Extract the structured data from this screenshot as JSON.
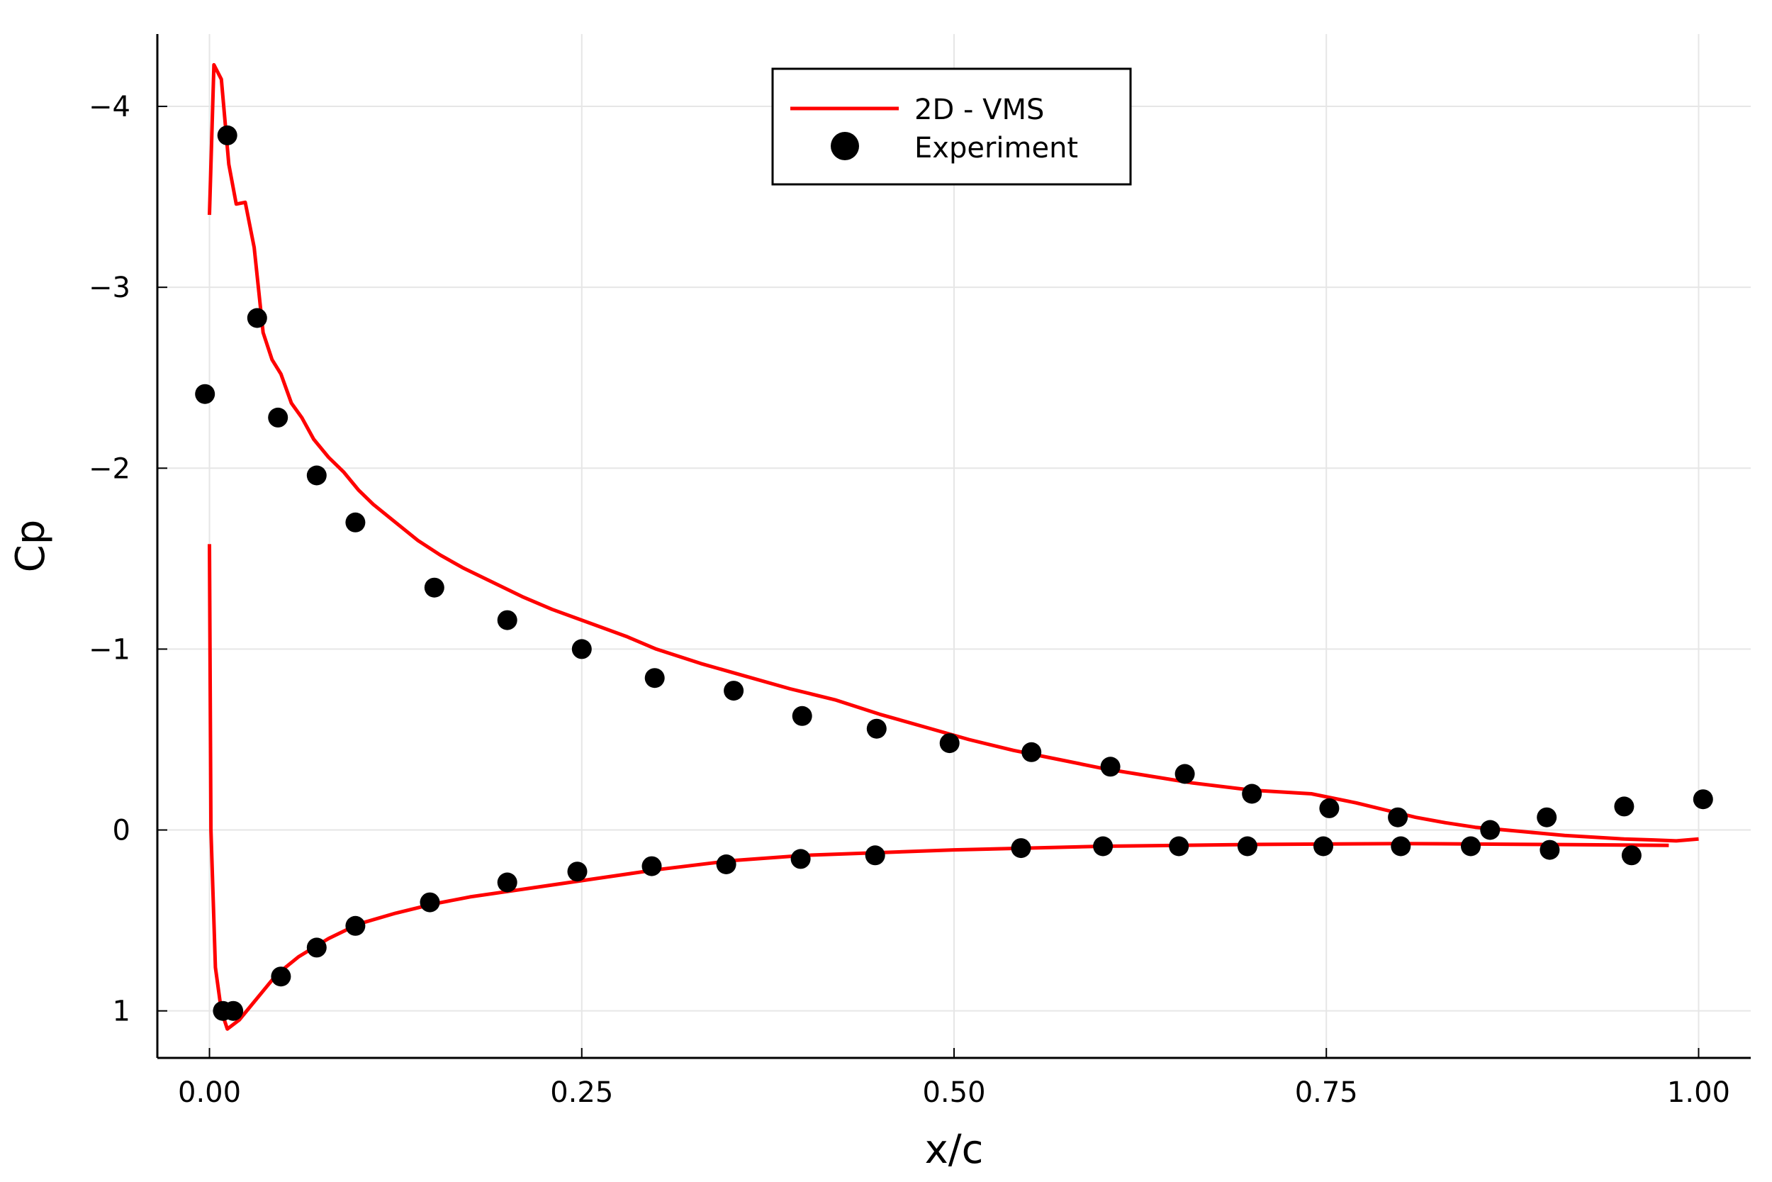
{
  "chart_data": {
    "type": "scatter",
    "title": "",
    "xlabel": "x/c",
    "ylabel": "Cp",
    "xlim": [
      -0.035,
      1.035
    ],
    "ylim": [
      1.26,
      -4.4
    ],
    "y_inverted": true,
    "grid": true,
    "legend_position": "top-center",
    "x_ticks": [
      {
        "value": 0.0,
        "label": "0.00"
      },
      {
        "value": 0.25,
        "label": "0.25"
      },
      {
        "value": 0.5,
        "label": "0.50"
      },
      {
        "value": 0.75,
        "label": "0.75"
      },
      {
        "value": 1.0,
        "label": "1.00"
      }
    ],
    "y_ticks": [
      {
        "value": -4,
        "label": "−4"
      },
      {
        "value": -3,
        "label": "−3"
      },
      {
        "value": -2,
        "label": "−2"
      },
      {
        "value": -1,
        "label": "−1"
      },
      {
        "value": 0,
        "label": "0"
      },
      {
        "value": 1,
        "label": "1"
      }
    ],
    "series": [
      {
        "name": "2D - VMS",
        "kind": "line",
        "color": "#ff0000",
        "segments": [
          [
            [
              0.0,
              -3.4
            ],
            [
              0.003,
              -4.23
            ],
            [
              0.008,
              -4.15
            ],
            [
              0.013,
              -3.68
            ],
            [
              0.018,
              -3.46
            ],
            [
              0.024,
              -3.47
            ],
            [
              0.03,
              -3.22
            ],
            [
              0.036,
              -2.75
            ],
            [
              0.042,
              -2.6
            ],
            [
              0.048,
              -2.52
            ],
            [
              0.055,
              -2.36
            ],
            [
              0.062,
              -2.28
            ],
            [
              0.07,
              -2.16
            ],
            [
              0.08,
              -2.06
            ],
            [
              0.09,
              -1.98
            ],
            [
              0.1,
              -1.88
            ],
            [
              0.11,
              -1.8
            ],
            [
              0.125,
              -1.7
            ],
            [
              0.14,
              -1.6
            ],
            [
              0.155,
              -1.52
            ],
            [
              0.17,
              -1.45
            ],
            [
              0.19,
              -1.37
            ],
            [
              0.21,
              -1.29
            ],
            [
              0.23,
              -1.22
            ],
            [
              0.25,
              -1.16
            ],
            [
              0.28,
              -1.07
            ],
            [
              0.3,
              -1.0
            ],
            [
              0.33,
              -0.92
            ],
            [
              0.36,
              -0.85
            ],
            [
              0.39,
              -0.78
            ],
            [
              0.42,
              -0.72
            ],
            [
              0.45,
              -0.64
            ],
            [
              0.48,
              -0.57
            ],
            [
              0.51,
              -0.5
            ],
            [
              0.54,
              -0.44
            ],
            [
              0.57,
              -0.39
            ],
            [
              0.6,
              -0.34
            ],
            [
              0.63,
              -0.3
            ],
            [
              0.66,
              -0.26
            ],
            [
              0.7,
              -0.22
            ],
            [
              0.74,
              -0.2
            ],
            [
              0.77,
              -0.15
            ],
            [
              0.79,
              -0.11
            ],
            [
              0.81,
              -0.07
            ],
            [
              0.83,
              -0.04
            ],
            [
              0.85,
              -0.015
            ],
            [
              0.87,
              0.0
            ],
            [
              0.89,
              0.015
            ],
            [
              0.91,
              0.03
            ],
            [
              0.93,
              0.04
            ],
            [
              0.95,
              0.05
            ],
            [
              0.97,
              0.055
            ],
            [
              0.985,
              0.06
            ],
            [
              1.0,
              0.05
            ]
          ],
          [
            [
              0.0,
              -1.58
            ],
            [
              0.001,
              0.0
            ],
            [
              0.004,
              0.76
            ],
            [
              0.008,
              1.0
            ],
            [
              0.012,
              1.1
            ],
            [
              0.02,
              1.05
            ],
            [
              0.03,
              0.95
            ],
            [
              0.045,
              0.8
            ],
            [
              0.06,
              0.7
            ],
            [
              0.08,
              0.6
            ],
            [
              0.1,
              0.52
            ],
            [
              0.125,
              0.46
            ],
            [
              0.15,
              0.41
            ],
            [
              0.175,
              0.37
            ],
            [
              0.2,
              0.34
            ],
            [
              0.25,
              0.28
            ],
            [
              0.3,
              0.22
            ],
            [
              0.35,
              0.17
            ],
            [
              0.4,
              0.14
            ],
            [
              0.5,
              0.11
            ],
            [
              0.6,
              0.09
            ],
            [
              0.7,
              0.08
            ],
            [
              0.8,
              0.075
            ],
            [
              0.9,
              0.08
            ],
            [
              0.98,
              0.085
            ]
          ]
        ]
      },
      {
        "name": "Experiment",
        "kind": "scatter",
        "color": "#000000",
        "points": [
          [
            -0.003,
            -2.41
          ],
          [
            0.012,
            -3.84
          ],
          [
            0.032,
            -2.83
          ],
          [
            0.046,
            -2.28
          ],
          [
            0.072,
            -1.96
          ],
          [
            0.098,
            -1.7
          ],
          [
            0.151,
            -1.34
          ],
          [
            0.2,
            -1.16
          ],
          [
            0.25,
            -1.0
          ],
          [
            0.299,
            -0.84
          ],
          [
            0.352,
            -0.77
          ],
          [
            0.398,
            -0.63
          ],
          [
            0.448,
            -0.56
          ],
          [
            0.497,
            -0.48
          ],
          [
            0.552,
            -0.43
          ],
          [
            0.605,
            -0.35
          ],
          [
            0.655,
            -0.31
          ],
          [
            0.7,
            -0.2
          ],
          [
            0.752,
            -0.12
          ],
          [
            0.798,
            -0.07
          ],
          [
            0.86,
            0.0
          ],
          [
            0.898,
            -0.07
          ],
          [
            0.95,
            -0.13
          ],
          [
            1.003,
            -0.17
          ],
          [
            0.009,
            1.0
          ],
          [
            0.016,
            1.0
          ],
          [
            0.048,
            0.81
          ],
          [
            0.072,
            0.65
          ],
          [
            0.098,
            0.53
          ],
          [
            0.148,
            0.4
          ],
          [
            0.2,
            0.29
          ],
          [
            0.247,
            0.23
          ],
          [
            0.297,
            0.2
          ],
          [
            0.347,
            0.19
          ],
          [
            0.397,
            0.16
          ],
          [
            0.447,
            0.14
          ],
          [
            0.545,
            0.1
          ],
          [
            0.6,
            0.09
          ],
          [
            0.651,
            0.09
          ],
          [
            0.697,
            0.09
          ],
          [
            0.748,
            0.09
          ],
          [
            0.8,
            0.09
          ],
          [
            0.847,
            0.09
          ],
          [
            0.9,
            0.11
          ],
          [
            0.955,
            0.14
          ]
        ]
      }
    ]
  }
}
